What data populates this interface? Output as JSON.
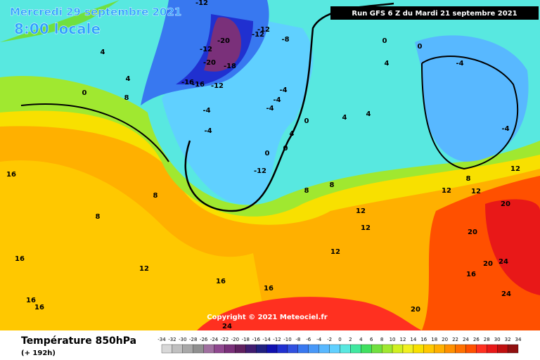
{
  "header": {
    "date": "Mercredi 29 septembre 2021",
    "time": "8:00 locale",
    "run": "Run GFS 6 Z du Mardi 21 septembre 2021"
  },
  "footer": {
    "title": "Température 850hPa",
    "lead": "(+ 192h)",
    "copyright": "Copyright © 2021 Meteociel.fr"
  },
  "colorbar": {
    "values": [
      -34,
      -32,
      -30,
      -28,
      -26,
      -24,
      -22,
      -20,
      -18,
      -16,
      -14,
      -12,
      -10,
      -8,
      -6,
      -4,
      -2,
      0,
      2,
      4,
      6,
      8,
      10,
      12,
      14,
      16,
      18,
      20,
      22,
      24,
      26,
      28,
      30,
      32,
      34
    ],
    "colors": [
      "#d8d8d8",
      "#c0c0c0",
      "#a8a8a8",
      "#909090",
      "#a070a0",
      "#904890",
      "#7a307a",
      "#602060",
      "#401c70",
      "#202080",
      "#1010b0",
      "#2030d0",
      "#3050e0",
      "#3878f0",
      "#4898f8",
      "#58b8ff",
      "#60d0ff",
      "#58e8e0",
      "#40e8a0",
      "#40e060",
      "#70e040",
      "#a0e830",
      "#d0f020",
      "#f0f020",
      "#f8e000",
      "#ffc800",
      "#ffb000",
      "#ff9000",
      "#ff7000",
      "#ff5000",
      "#ff3020",
      "#e81818",
      "#c01010",
      "#901010"
    ]
  },
  "map": {
    "labels": [
      -12,
      -12,
      -12,
      -8,
      -12,
      -20,
      -20,
      -18,
      -16,
      -16,
      -12,
      -4,
      -4,
      -4,
      -4,
      -4,
      -4,
      -4,
      -12,
      0,
      0,
      0,
      0,
      0,
      0,
      4,
      4,
      4,
      4,
      4,
      4,
      8,
      8,
      8,
      8,
      8,
      8,
      12,
      12,
      12,
      12,
      12,
      12,
      12,
      16,
      16,
      16,
      16,
      16,
      16,
      16,
      20,
      20,
      20,
      20,
      24,
      24,
      24
    ]
  }
}
